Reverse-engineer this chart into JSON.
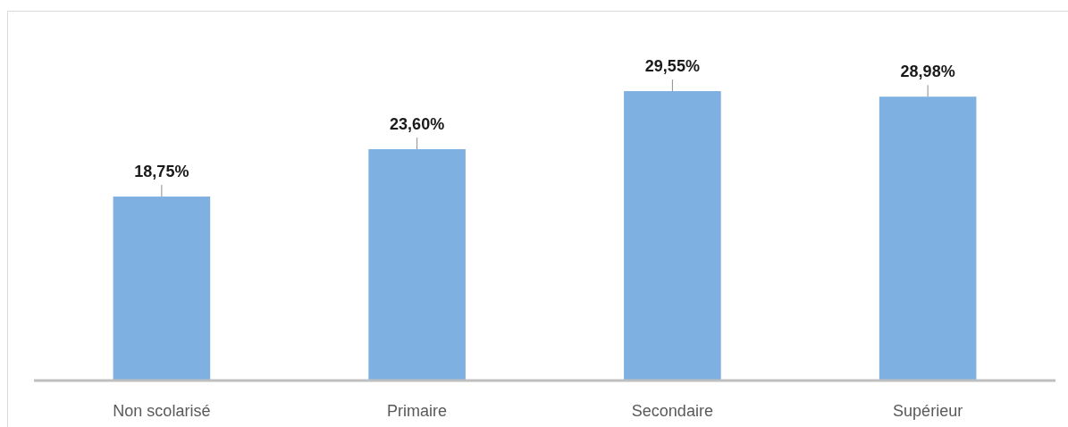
{
  "chart_data": {
    "type": "bar",
    "categories": [
      "Non scolarisé",
      "Primaire",
      "Secondaire",
      "Supérieur"
    ],
    "values": [
      18.75,
      23.6,
      29.55,
      28.98
    ],
    "value_labels": [
      "18,75%",
      "23,60%",
      "29,55%",
      "28,98%"
    ],
    "color": "#7fb0e2"
  }
}
